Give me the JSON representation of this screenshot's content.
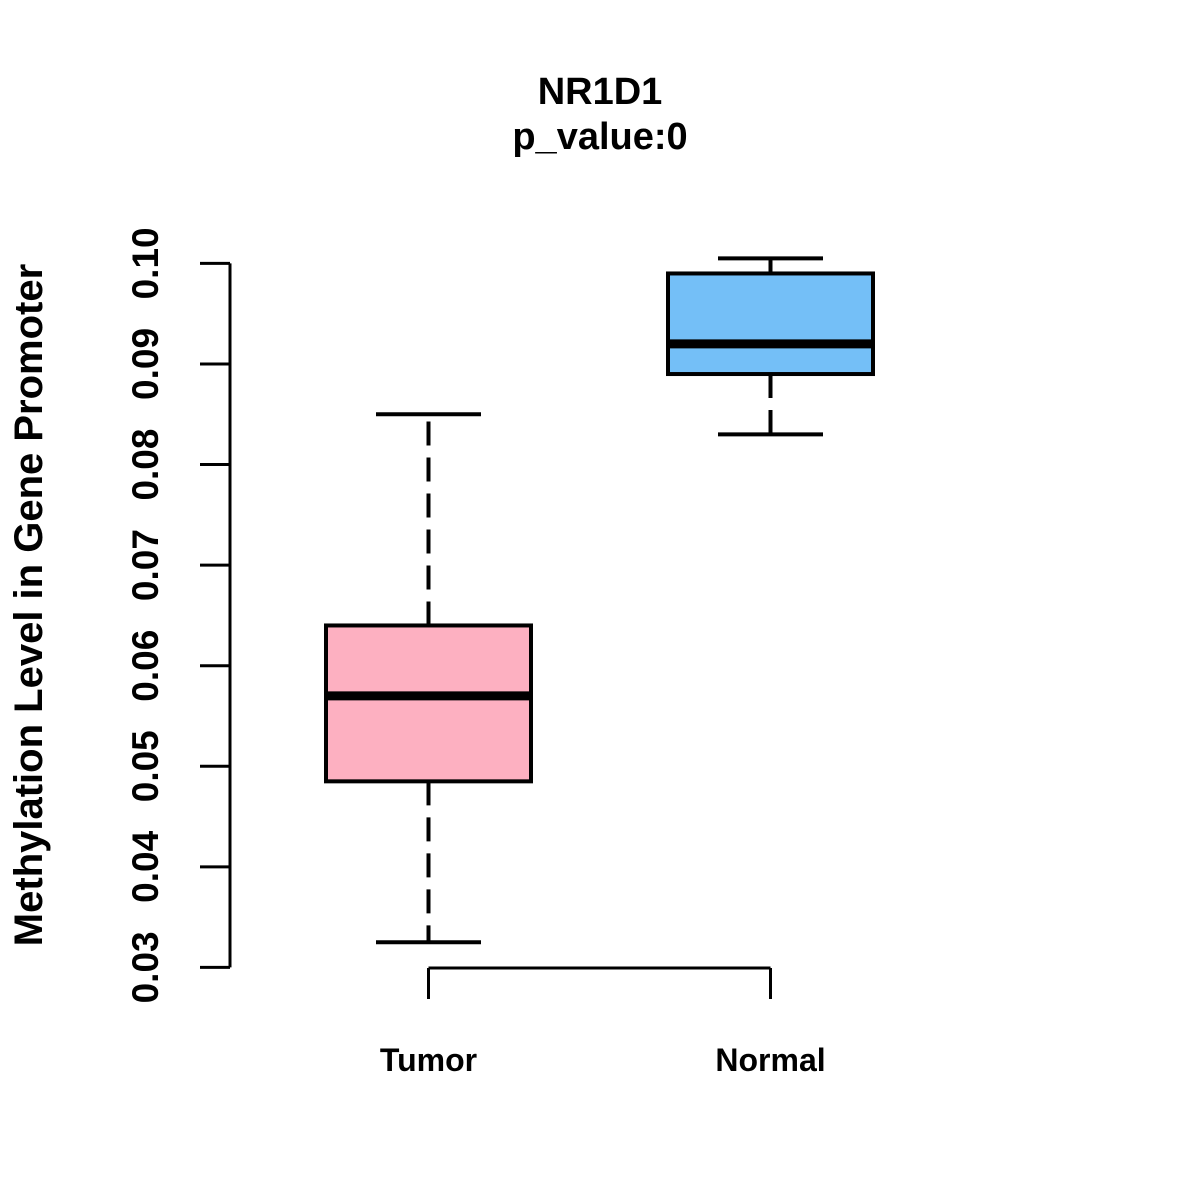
{
  "chart_data": {
    "type": "boxplot",
    "title": "NR1D1",
    "subtitle": "p_value:0",
    "ylabel": "Methylation Level in Gene Promoter",
    "xlabel": "",
    "categories": [
      "Tumor",
      "Normal"
    ],
    "series": [
      {
        "name": "Tumor",
        "lower_whisker": 0.0325,
        "q1": 0.0485,
        "median": 0.057,
        "q3": 0.064,
        "upper_whisker": 0.085,
        "outliers": [],
        "fill_color": "#FDB0C1"
      },
      {
        "name": "Normal",
        "lower_whisker": 0.083,
        "q1": 0.089,
        "median": 0.092,
        "q3": 0.099,
        "upper_whisker": 0.1005,
        "outliers": [],
        "fill_color": "#74BFF7"
      }
    ],
    "y_ticks": [
      0.03,
      0.04,
      0.05,
      0.06,
      0.07,
      0.08,
      0.09,
      0.1
    ],
    "y_tick_labels": [
      "0.03",
      "0.04",
      "0.05",
      "0.06",
      "0.07",
      "0.08",
      "0.09",
      "0.10"
    ],
    "ylim": [
      0.03,
      0.101
    ],
    "grid": false,
    "legend": "none",
    "whisker_line_style": "dashed",
    "box_border_color": "#000000",
    "median_color": "#000000",
    "axis_color": "#000000",
    "background_color": "#ffffff"
  }
}
